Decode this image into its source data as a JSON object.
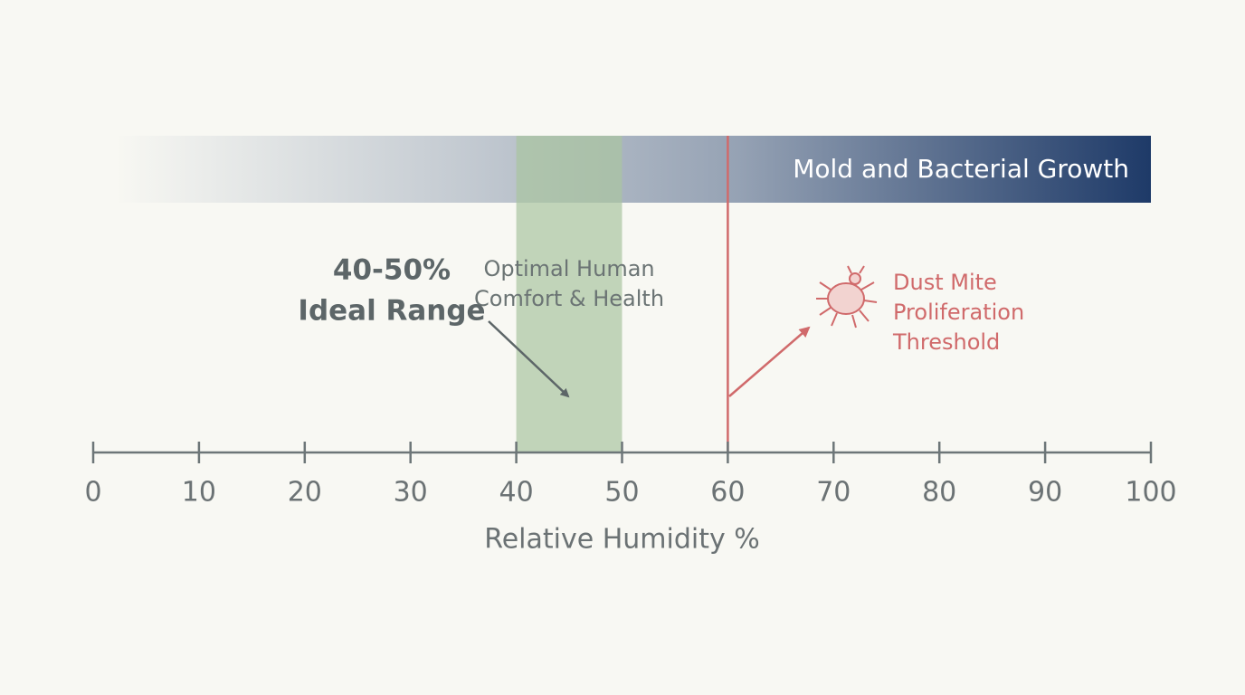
{
  "chart_data": {
    "type": "range",
    "xlabel": "Relative Humidity %",
    "xlim": [
      0,
      100
    ],
    "xticks": [
      0,
      10,
      20,
      30,
      40,
      50,
      60,
      70,
      80,
      90,
      100
    ],
    "axis_color": "#6d7678",
    "bands": [
      {
        "name": "Mold and Bacterial Growth",
        "range": [
          2,
          100
        ],
        "color": "#1e3a68"
      },
      {
        "name": [
          "Optimal Human",
          "Comfort & Health"
        ],
        "range": [
          40,
          50
        ],
        "color": "#a9c5a0"
      }
    ],
    "threshold": {
      "value": 60,
      "label": [
        "Dust Mite",
        "Proliferation",
        "Threshold"
      ],
      "color": "#d06a6b"
    },
    "annotation": [
      "40-50%",
      "Ideal Range"
    ]
  }
}
